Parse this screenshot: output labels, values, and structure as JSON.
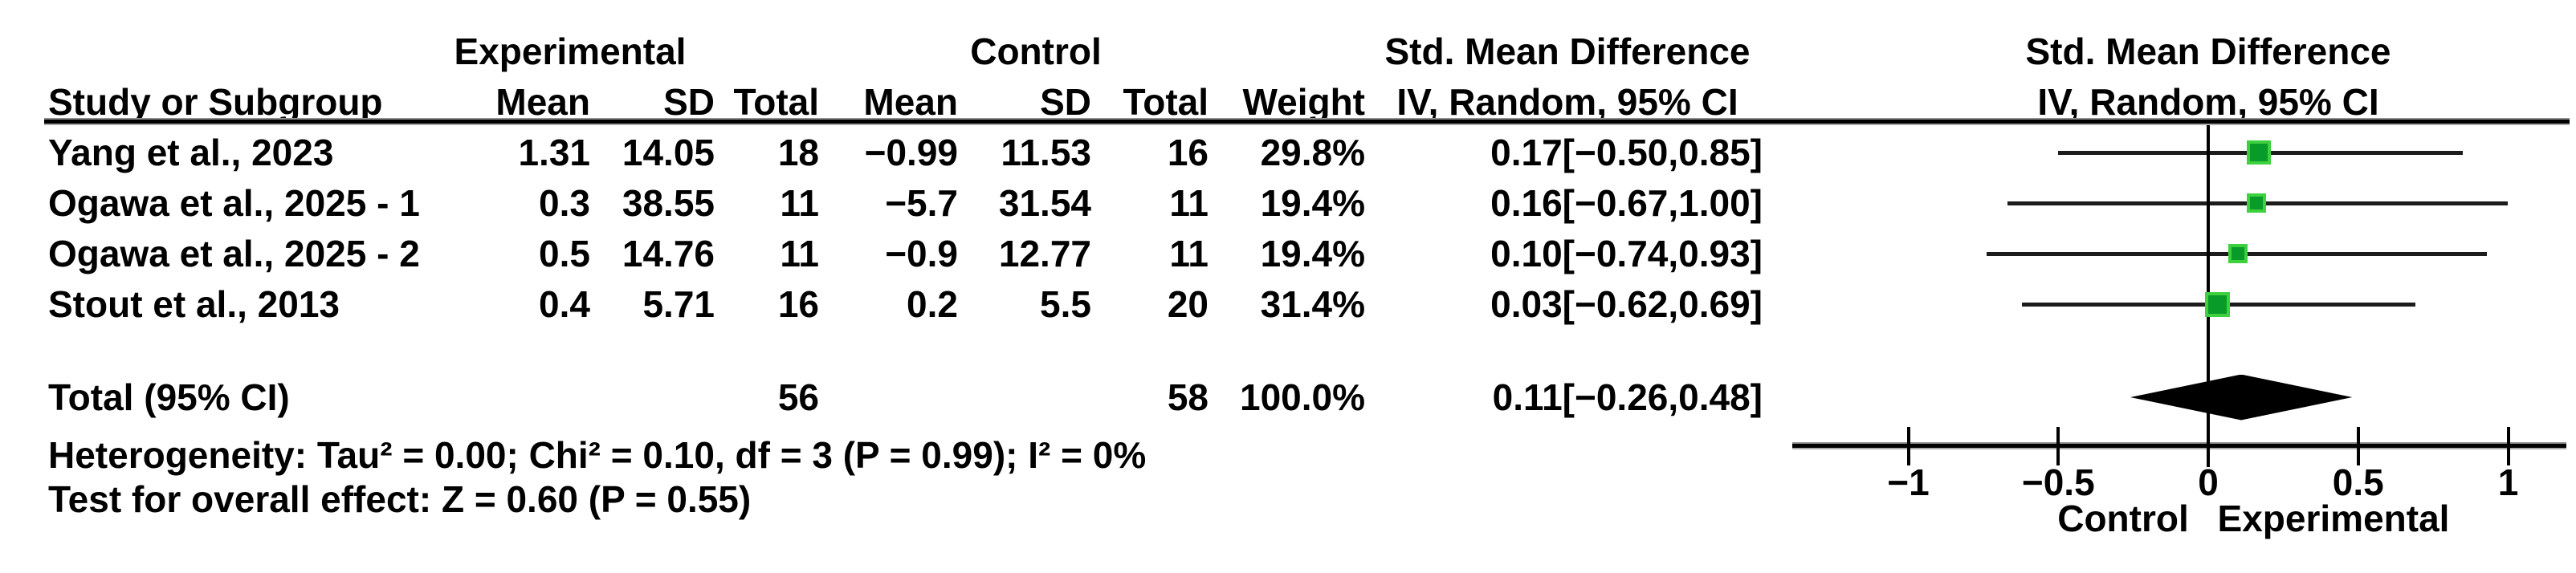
{
  "table": {
    "group_headers": {
      "experimental": "Experimental",
      "control": "Control",
      "smd": "Std. Mean Difference"
    },
    "columns": {
      "study": "Study or Subgroup",
      "mean": "Mean",
      "sd": "SD",
      "total": "Total",
      "weight": "Weight",
      "ci": "IV, Random, 95% CI"
    },
    "rows": [
      {
        "study": "Yang et al., 2023",
        "exp_mean": "1.31",
        "exp_sd": "14.05",
        "exp_total": "18",
        "ctrl_mean": "−0.99",
        "ctrl_sd": "11.53",
        "ctrl_total": "16",
        "weight": "29.8%",
        "ci_text": "0.17[−0.50,0.85]"
      },
      {
        "study": "Ogawa et al., 2025 - 1",
        "exp_mean": "0.3",
        "exp_sd": "38.55",
        "exp_total": "11",
        "ctrl_mean": "−5.7",
        "ctrl_sd": "31.54",
        "ctrl_total": "11",
        "weight": "19.4%",
        "ci_text": "0.16[−0.67,1.00]"
      },
      {
        "study": "Ogawa et al., 2025 - 2",
        "exp_mean": "0.5",
        "exp_sd": "14.76",
        "exp_total": "11",
        "ctrl_mean": "−0.9",
        "ctrl_sd": "12.77",
        "ctrl_total": "11",
        "weight": "19.4%",
        "ci_text": "0.10[−0.74,0.93]"
      },
      {
        "study": "Stout et al., 2013",
        "exp_mean": "0.4",
        "exp_sd": "5.71",
        "exp_total": "16",
        "ctrl_mean": "0.2",
        "ctrl_sd": "5.5",
        "ctrl_total": "20",
        "weight": "31.4%",
        "ci_text": "0.03[−0.62,0.69]"
      }
    ],
    "total_row": {
      "label": "Total (95% CI)",
      "exp_total": "56",
      "ctrl_total": "58",
      "weight": "100.0%",
      "ci_text": "0.11[−0.26,0.48]"
    },
    "footers": {
      "heterogeneity": "Heterogeneity: Tau² = 0.00; Chi² = 0.10, df = 3 (P = 0.99); I² = 0%",
      "overall_effect": "Test for overall effect: Z = 0.60 (P = 0.55)"
    }
  },
  "plot": {
    "header_line1": "Std. Mean Difference",
    "header_line2": "IV, Random, 95% CI",
    "tick_labels": [
      "−1",
      "−0.5",
      "0",
      "0.5",
      "1"
    ],
    "left_label": "Control",
    "right_label": "Experimental",
    "square_fill": "#089b2a",
    "square_border": "#3ed13e",
    "diamond_color": "#000000",
    "line_color": "#1c1c1c"
  },
  "chart_data": {
    "type": "forest",
    "title": "Std. Mean Difference",
    "effect_model": "IV, Random, 95% CI",
    "x_ticks": [
      -1,
      -0.5,
      0,
      0.5,
      1
    ],
    "xlim": [
      -1.39,
      1.19
    ],
    "x_axis_left_label": "Control",
    "x_axis_right_label": "Experimental",
    "studies": [
      {
        "name": "Yang et al., 2023",
        "exp_mean": 1.31,
        "exp_sd": 14.05,
        "exp_total": 18,
        "ctrl_mean": -0.99,
        "ctrl_sd": 11.53,
        "ctrl_total": 16,
        "weight_pct": 29.8,
        "est": 0.17,
        "ci_low": -0.5,
        "ci_high": 0.85
      },
      {
        "name": "Ogawa et al., 2025 - 1",
        "exp_mean": 0.3,
        "exp_sd": 38.55,
        "exp_total": 11,
        "ctrl_mean": -5.7,
        "ctrl_sd": 31.54,
        "ctrl_total": 11,
        "weight_pct": 19.4,
        "est": 0.16,
        "ci_low": -0.67,
        "ci_high": 1.0
      },
      {
        "name": "Ogawa et al., 2025 - 2",
        "exp_mean": 0.5,
        "exp_sd": 14.76,
        "exp_total": 11,
        "ctrl_mean": -0.9,
        "ctrl_sd": 12.77,
        "ctrl_total": 11,
        "weight_pct": 19.4,
        "est": 0.1,
        "ci_low": -0.74,
        "ci_high": 0.93
      },
      {
        "name": "Stout et al., 2013",
        "exp_mean": 0.4,
        "exp_sd": 5.71,
        "exp_total": 16,
        "ctrl_mean": 0.2,
        "ctrl_sd": 5.5,
        "ctrl_total": 20,
        "weight_pct": 31.4,
        "est": 0.03,
        "ci_low": -0.62,
        "ci_high": 0.69
      }
    ],
    "total": {
      "exp_total": 56,
      "ctrl_total": 58,
      "weight_pct": 100.0,
      "est": 0.11,
      "ci_low": -0.26,
      "ci_high": 0.48
    },
    "heterogeneity": {
      "tau2": 0.0,
      "chi2": 0.1,
      "df": 3,
      "p": 0.99,
      "i2_pct": 0
    },
    "overall_effect": {
      "z": 0.6,
      "p": 0.55
    }
  }
}
